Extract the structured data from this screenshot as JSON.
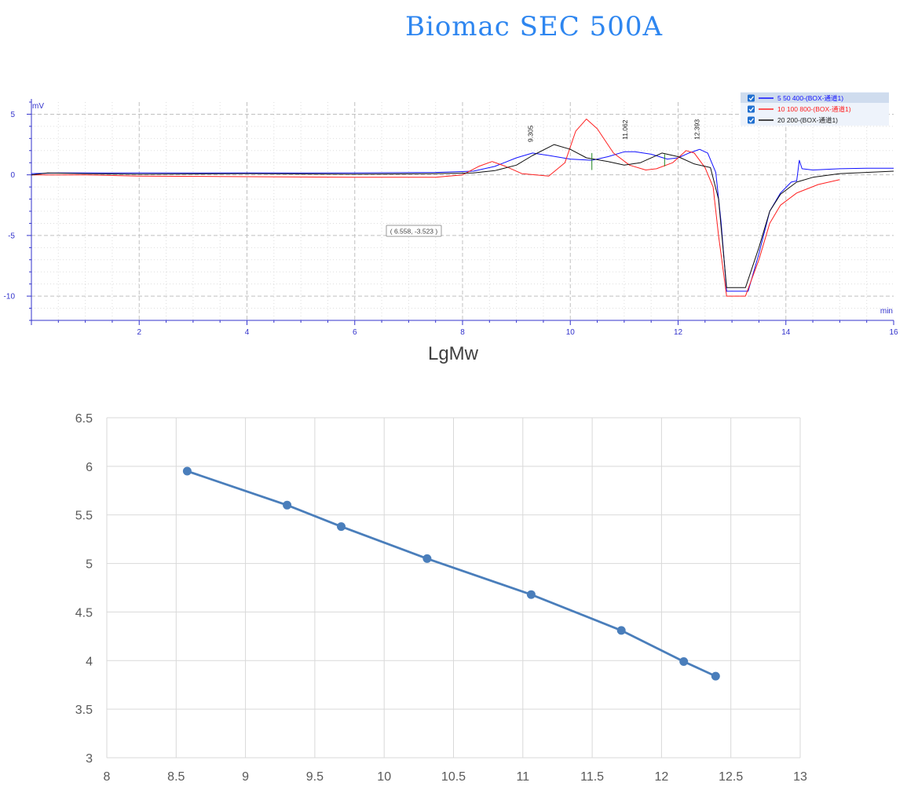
{
  "title": "Biomac SEC 500A",
  "chart_data": [
    {
      "type": "line",
      "xlabel": "min",
      "ylabel": "mV",
      "xlim": [
        0,
        16
      ],
      "ylim": [
        -12,
        6
      ],
      "x_ticks": [
        "2",
        "4",
        "6",
        "8",
        "10",
        "12",
        "14",
        "16"
      ],
      "y_ticks": [
        "5",
        "0",
        "-5",
        "-10"
      ],
      "grid": true,
      "legend": "top-right",
      "cursor_readout": "( 6.558, -3.523 )",
      "peak_labels": [
        {
          "text": "9.305",
          "x": 9.305,
          "y": 2.7
        },
        {
          "text": "11.062",
          "x": 11.062,
          "y": 2.9
        },
        {
          "text": "12.393",
          "x": 12.393,
          "y": 2.9
        }
      ],
      "series": [
        {
          "name": "5 50 400-(BOX-通道1)",
          "color": "#1010ff",
          "x": [
            0,
            0.5,
            1,
            2,
            4,
            6,
            7.5,
            8.2,
            8.6,
            9.0,
            9.3,
            9.6,
            10.0,
            10.4,
            10.7,
            11.0,
            11.2,
            11.5,
            11.8,
            12.0,
            12.2,
            12.4,
            12.55,
            12.7,
            12.8,
            12.9,
            13.3,
            13.5,
            13.7,
            13.9,
            14.1,
            14.2,
            14.25,
            14.3,
            14.5,
            15,
            15.5,
            16
          ],
          "y": [
            0.1,
            0.15,
            0.15,
            0.15,
            0.15,
            0.15,
            0.2,
            0.3,
            0.7,
            1.4,
            1.8,
            1.6,
            1.3,
            1.2,
            1.5,
            1.9,
            1.9,
            1.7,
            1.3,
            1.4,
            1.8,
            2.1,
            1.8,
            0.2,
            -4,
            -9.6,
            -9.6,
            -6.5,
            -3,
            -1.5,
            -0.6,
            -0.5,
            1.2,
            0.5,
            0.4,
            0.5,
            0.55,
            0.55
          ]
        },
        {
          "name": "10 100 800-(BOX-通道1)",
          "color": "#ff2020",
          "x": [
            0,
            1,
            2,
            4,
            6,
            7.5,
            8.0,
            8.3,
            8.55,
            8.8,
            9.1,
            9.6,
            9.9,
            10.1,
            10.3,
            10.5,
            10.8,
            11.1,
            11.4,
            11.6,
            11.9,
            12.15,
            12.3,
            12.5,
            12.65,
            12.75,
            12.9,
            13.25,
            13.5,
            13.7,
            13.9,
            14.2,
            14.6,
            15
          ],
          "y": [
            0,
            0,
            -0.1,
            -0.15,
            -0.2,
            -0.2,
            0,
            0.7,
            1.1,
            0.7,
            0.1,
            -0.1,
            1.0,
            3.6,
            4.6,
            3.8,
            1.8,
            0.8,
            0.4,
            0.5,
            1.0,
            2.0,
            1.8,
            0.6,
            -1,
            -5,
            -10.0,
            -10.0,
            -7,
            -4,
            -2.5,
            -1.5,
            -0.8,
            -0.4
          ]
        },
        {
          "name": "20 200-(BOX-通道1)",
          "color": "#101010",
          "x": [
            0,
            0.3,
            1,
            2,
            4,
            6,
            7.5,
            8.2,
            8.6,
            9.0,
            9.3,
            9.7,
            10.0,
            10.3,
            10.7,
            11.0,
            11.3,
            11.7,
            12.0,
            12.3,
            12.6,
            12.75,
            12.9,
            13.25,
            13.5,
            13.7,
            13.9,
            14.2,
            14.5,
            15,
            16
          ],
          "y": [
            0,
            0.15,
            0.1,
            0.05,
            0.1,
            0.05,
            0.1,
            0.15,
            0.35,
            0.8,
            1.6,
            2.5,
            2.1,
            1.4,
            1.1,
            0.8,
            1.0,
            1.8,
            1.5,
            0.9,
            0.6,
            -2,
            -9.3,
            -9.3,
            -6,
            -3,
            -1.6,
            -0.6,
            -0.2,
            0.1,
            0.3
          ]
        }
      ]
    },
    {
      "type": "line",
      "title": "LgMw",
      "xlim": [
        8,
        13
      ],
      "ylim": [
        3,
        6.5
      ],
      "x_ticks": [
        "8",
        "8.5",
        "9",
        "9.5",
        "10",
        "10.5",
        "11",
        "11.5",
        "12",
        "12.5",
        "13"
      ],
      "y_ticks": [
        "6.5",
        "6",
        "5.5",
        "5",
        "4.5",
        "4",
        "3.5",
        "3"
      ],
      "grid": true,
      "color": "#4a7ebb",
      "x": [
        8.58,
        9.3,
        9.69,
        10.31,
        11.06,
        11.71,
        12.16,
        12.39
      ],
      "y": [
        5.95,
        5.6,
        5.38,
        5.05,
        4.68,
        4.31,
        3.99,
        3.84
      ]
    }
  ]
}
